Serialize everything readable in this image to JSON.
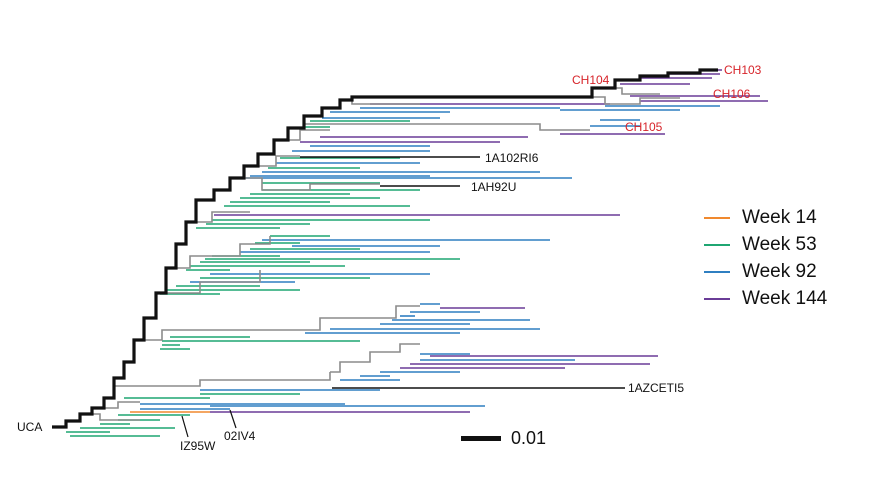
{
  "colors": {
    "trunk": "#111111",
    "internal": "#8c8c8c",
    "week14": "#f0892e",
    "week53": "#1fa672",
    "week92": "#2f7fc1",
    "week144": "#6a3c97",
    "highlight": "#d7242a"
  },
  "labels": {
    "uca": "UCA",
    "ch103": "CH103",
    "ch104": "CH104",
    "ch105": "CH105",
    "ch106": "CH106",
    "l1a102ri6": "1A102RI6",
    "l1ah92u": "1AH92U",
    "l1azceti5": "1AZCETI5",
    "iz95w": "IZ95W",
    "l02iv4": "02IV4"
  },
  "legend": [
    {
      "label": "Week 14",
      "color": "#f0892e"
    },
    {
      "label": "Week 53",
      "color": "#1fa672"
    },
    {
      "label": "Week 92",
      "color": "#2f7fc1"
    },
    {
      "label": "Week 144",
      "color": "#6a3c97"
    }
  ],
  "scale": {
    "label": "0.01"
  }
}
